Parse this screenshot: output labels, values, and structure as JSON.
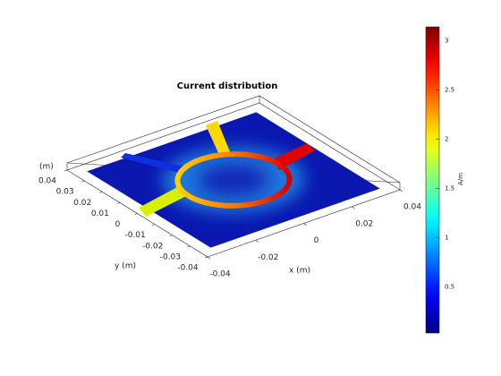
{
  "chart_data": {
    "type": "surface",
    "title": "Current distribution",
    "xlabel": "x (m)",
    "ylabel": "y (m)",
    "zlabel": "(m)",
    "xlim": [
      -0.04,
      0.04
    ],
    "xticks": [
      -0.04,
      -0.02,
      0,
      0.02,
      0.04
    ],
    "ylim": [
      -0.04,
      0.04
    ],
    "yticks": [
      -0.04,
      -0.03,
      -0.02,
      -0.01,
      0,
      0.01,
      0.02,
      0.03,
      0.04
    ],
    "colorbar": {
      "label": "A/m",
      "clim": [
        0.03,
        3.14
      ],
      "ticks": [
        0.5,
        1,
        1.5,
        2,
        2.5,
        3
      ],
      "colormap": "jet"
    }
  }
}
